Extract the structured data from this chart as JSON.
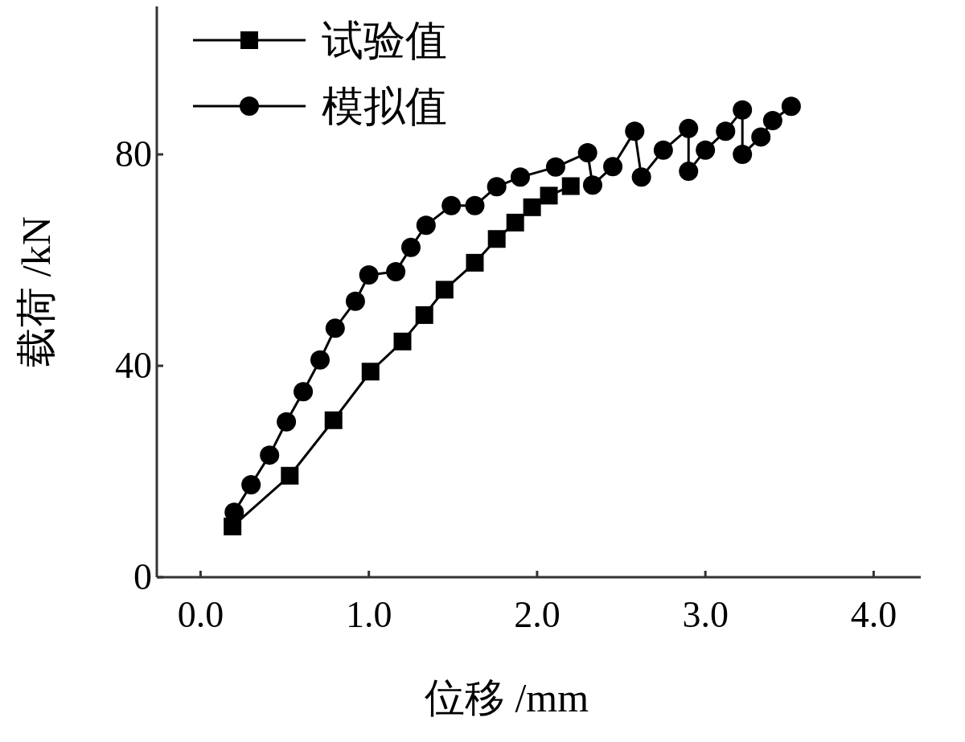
{
  "chart_data": {
    "type": "line",
    "xlabel": "位移 /mm",
    "ylabel": "载荷 /kN",
    "xlim": [
      -0.26,
      4.28
    ],
    "ylim": [
      0,
      108
    ],
    "xticks": [
      {
        "value": 0,
        "label": "0.0"
      },
      {
        "value": 1,
        "label": "1.0"
      },
      {
        "value": 2,
        "label": "2.0"
      },
      {
        "value": 3,
        "label": "3.0"
      },
      {
        "value": 4,
        "label": "4.0"
      }
    ],
    "yticks": [
      0,
      40,
      80
    ],
    "grid": false,
    "legend": "top left",
    "line_style": "solid",
    "series": [
      {
        "name": "试验值",
        "color": "#000000",
        "marker": "square",
        "x": [
          0.19,
          0.53,
          0.79,
          1.01,
          1.2,
          1.33,
          1.45,
          1.63,
          1.76,
          1.87,
          1.97,
          2.07,
          2.2
        ],
        "values": [
          9.6,
          19.2,
          29.7,
          38.9,
          44.6,
          49.6,
          54.4,
          59.5,
          64,
          67.1,
          70,
          72.2,
          74
        ]
      },
      {
        "name": "模拟值",
        "color": "#000000",
        "marker": "circle",
        "x": [
          0.2,
          0.3,
          0.41,
          0.51,
          0.61,
          0.71,
          0.8,
          0.92,
          1.0,
          1.16,
          1.25,
          1.34,
          1.49,
          1.63,
          1.76,
          1.9,
          2.11,
          2.3,
          2.33,
          2.45,
          2.58,
          2.62,
          2.75,
          2.9,
          2.9,
          3.0,
          3.12,
          3.22,
          3.22,
          3.33,
          3.4,
          3.51
        ],
        "values": [
          12.3,
          17.5,
          23.1,
          29.4,
          35.1,
          41.1,
          47.1,
          52.2,
          57.2,
          57.8,
          62.4,
          66.6,
          70.3,
          70.3,
          73.9,
          75.7,
          77.6,
          80.3,
          74.2,
          77.7,
          84.4,
          75.7,
          80.8,
          84.9,
          76.8,
          80.8,
          84.4,
          88.4,
          80,
          83.3,
          86.4,
          89.1
        ]
      }
    ]
  }
}
